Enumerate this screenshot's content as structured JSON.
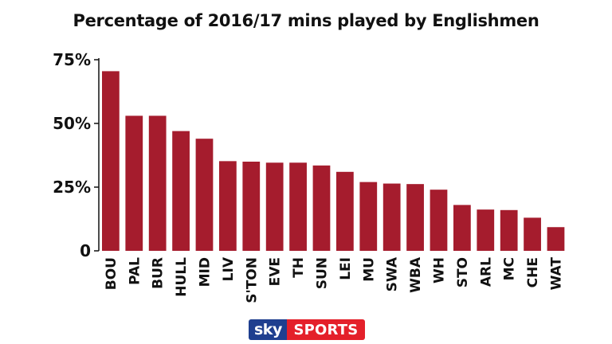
{
  "title": "Percentage of 2016/17 mins played by Englishmen",
  "colors": {
    "bar": "#a51c2d",
    "axis": "#111111",
    "grid": "#cfcfcf"
  },
  "logo": {
    "sky": "sky",
    "sports": "SPORTS"
  },
  "chart_data": {
    "type": "bar",
    "title": "Percentage of 2016/17 mins played by Englishmen",
    "xlabel": "",
    "ylabel": "",
    "ylim": [
      0,
      75
    ],
    "yticks": [
      0,
      25,
      50,
      75
    ],
    "ytick_labels": [
      "0",
      "25%",
      "50%",
      "75%"
    ],
    "grid": false,
    "categories": [
      "BOU",
      "PAL",
      "BUR",
      "HULL",
      "MID",
      "LIV",
      "S'TON",
      "EVE",
      "TH",
      "SUN",
      "LEI",
      "MU",
      "SWA",
      "WBA",
      "WH",
      "STO",
      "ARL",
      "MC",
      "CHE",
      "WAT"
    ],
    "values": [
      70.5,
      53,
      53,
      47,
      44,
      35.2,
      35,
      34.6,
      34.6,
      33.5,
      31,
      27,
      26.4,
      26.2,
      24,
      18,
      16.2,
      16,
      13,
      9.3
    ]
  }
}
